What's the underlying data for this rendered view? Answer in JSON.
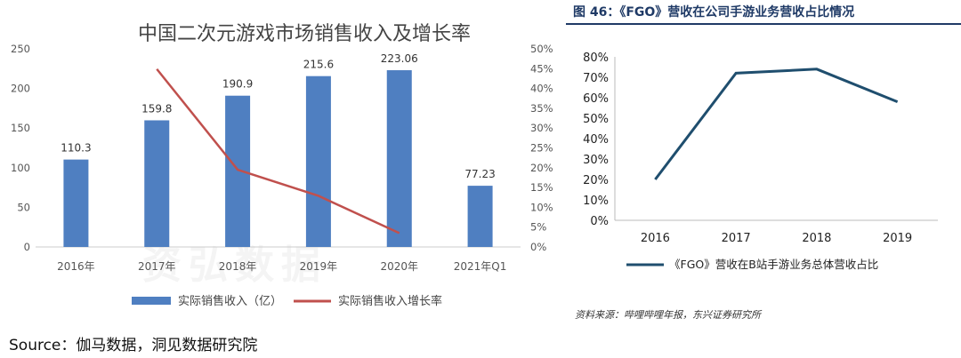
{
  "left_chart": {
    "title": "中国二次元游戏市场销售收入及增长率",
    "legend": {
      "bar_label": "实际销售收入（亿）",
      "line_label": "实际销售收入增长率"
    },
    "colors": {
      "bar": "#4f7fc1",
      "line": "#c0504d"
    },
    "watermark": "资弘数据"
  },
  "right_chart": {
    "figure_title": "图 46：《FGO》营收在公司手游业务营收占比情况",
    "legend_label": "《FGO》营收在B站手游业务总体营收占比",
    "source_note": "资料来源：哔哩哔哩年报，东兴证券研究所",
    "colors": {
      "line": "#1f4e6e",
      "header": "#1f3a66"
    }
  },
  "page_source": "Source：伽马数据，洞见数据研究院",
  "chart_data": [
    {
      "type": "bar",
      "title": "中国二次元游戏市场销售收入及增长率",
      "categories": [
        "2016年",
        "2017年",
        "2018年",
        "2019年",
        "2020年",
        "2021年Q1"
      ],
      "series": [
        {
          "name": "实际销售收入（亿）",
          "type": "bar",
          "axis": "left",
          "values": [
            110.3,
            159.8,
            190.9,
            215.6,
            223.06,
            77.23
          ],
          "labels": [
            "110.3",
            "159.8",
            "190.9",
            "215.6",
            "223.06",
            "77.23"
          ]
        },
        {
          "name": "实际销售收入增长率",
          "type": "line",
          "axis": "right",
          "values": [
            null,
            0.449,
            0.195,
            0.129,
            0.035,
            null
          ]
        }
      ],
      "ylim_left": [
        0,
        250
      ],
      "yticks_left": [
        "0",
        "50",
        "100",
        "150",
        "200",
        "250"
      ],
      "ylim_right": [
        0,
        0.5
      ],
      "yticks_right": [
        "0%",
        "5%",
        "10%",
        "15%",
        "20%",
        "25%",
        "30%",
        "35%",
        "40%",
        "45%",
        "50%"
      ],
      "xlabel": "",
      "ylabel": "",
      "grid": false,
      "legend_position": "bottom"
    },
    {
      "type": "line",
      "title": "图 46：《FGO》营收在公司手游业务营收占比情况",
      "categories": [
        "2016",
        "2017",
        "2018",
        "2019"
      ],
      "series": [
        {
          "name": "《FGO》营收在B站手游业务总体营收占比",
          "values": [
            0.2,
            0.72,
            0.74,
            0.58
          ]
        }
      ],
      "ylim": [
        0,
        0.8
      ],
      "yticks": [
        "0%",
        "10%",
        "20%",
        "30%",
        "40%",
        "50%",
        "60%",
        "70%",
        "80%"
      ],
      "xlabel": "",
      "ylabel": "",
      "grid": false,
      "legend_position": "bottom"
    }
  ]
}
